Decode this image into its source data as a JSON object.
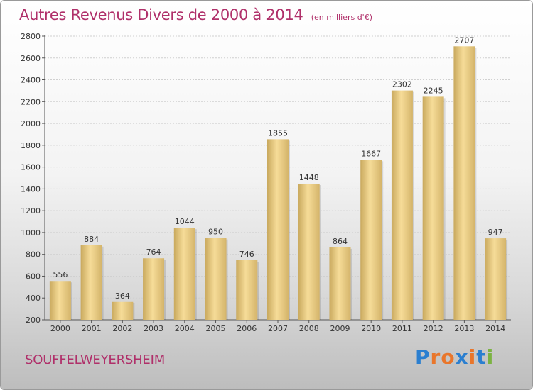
{
  "title": "Autres Revenus Divers de 2000 à 2014",
  "subtitle": "(en milliers d'€)",
  "city": "SOUFFELWEYERSHEIM",
  "logo": {
    "text": "Proxiti",
    "letters": [
      "P",
      "r",
      "o",
      "x",
      "i",
      "t",
      "i"
    ],
    "colors": [
      "#2b7fd0",
      "#e9762b",
      "#e9762b",
      "#2b7fd0",
      "#e9762b",
      "#2b7fd0",
      "#7cb342"
    ]
  },
  "colors": {
    "title": "#b0306a",
    "bar_light": "#f6dc98",
    "bar_dark": "#c9a95e"
  },
  "chart_data": {
    "type": "bar",
    "categories": [
      "2000",
      "2001",
      "2002",
      "2003",
      "2004",
      "2005",
      "2006",
      "2007",
      "2008",
      "2009",
      "2010",
      "2011",
      "2012",
      "2013",
      "2014"
    ],
    "values": [
      556,
      884,
      364,
      764,
      1044,
      950,
      746,
      1855,
      1448,
      864,
      1667,
      2302,
      2245,
      2707,
      947
    ],
    "ylim": [
      200,
      2800
    ],
    "yticks": [
      "200",
      "400",
      "600",
      "800",
      "1000",
      "1200",
      "1400",
      "1600",
      "1800",
      "2000",
      "2200",
      "2400",
      "2600",
      "2800"
    ],
    "grid": true,
    "legend": "none"
  }
}
